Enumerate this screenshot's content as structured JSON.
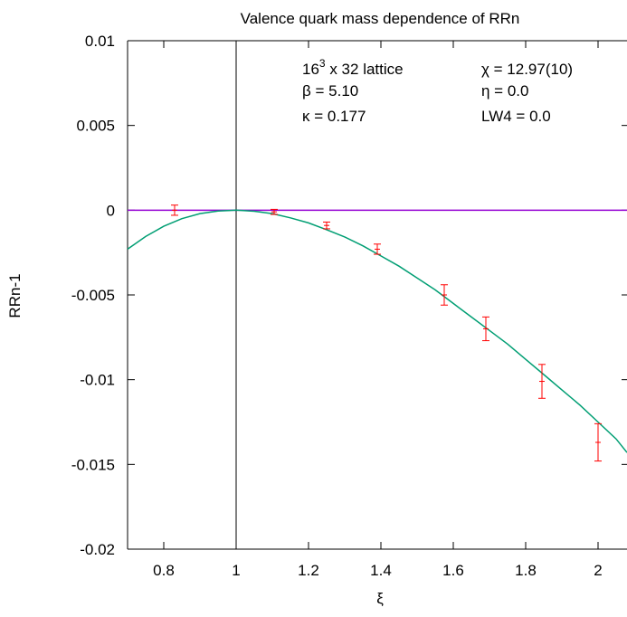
{
  "chart_data": {
    "type": "scatter",
    "title": "Valence quark mass dependence of RRn",
    "xlabel": "ξ",
    "ylabel": "RRn-1",
    "xlim": [
      0.7,
      2.08
    ],
    "ylim": [
      -0.02,
      0.01
    ],
    "xticks": [
      0.8,
      1,
      1.2,
      1.4,
      1.6,
      1.8,
      2
    ],
    "xtick_labels": [
      "0.8",
      "1",
      "1.2",
      "1.4",
      "1.6",
      "1.8",
      "2"
    ],
    "yticks": [
      0.01,
      0.005,
      0,
      -0.005,
      -0.01,
      -0.015,
      -0.02
    ],
    "ytick_labels": [
      "0.01",
      "0.005",
      "0",
      "-0.005",
      "-0.01",
      "-0.015",
      "-0.02"
    ],
    "grid": false,
    "reference_lines": {
      "horizontal_y": 0,
      "vertical_x": 1
    },
    "annotations": {
      "lattice_base": "16",
      "lattice_exp": "3",
      "lattice_rest": " x 32 lattice",
      "beta": "β = 5.10",
      "kappa": "κ = 0.177",
      "chi": "χ = 12.97(10)",
      "eta": "η = 0.0",
      "lw4": "LW4 =  0.0"
    },
    "series": [
      {
        "kind": "points_with_errors",
        "points": [
          {
            "x": 0.83,
            "y": 0.0,
            "err": 0.0003
          },
          {
            "x": 1.105,
            "y": -0.0001,
            "err": 0.00015
          },
          {
            "x": 1.25,
            "y": -0.0009,
            "err": 0.0002
          },
          {
            "x": 1.39,
            "y": -0.0023,
            "err": 0.0003
          },
          {
            "x": 1.575,
            "y": -0.005,
            "err": 0.0006
          },
          {
            "x": 1.69,
            "y": -0.007,
            "err": 0.0007
          },
          {
            "x": 1.845,
            "y": -0.0101,
            "err": 0.001
          },
          {
            "x": 2.0,
            "y": -0.0137,
            "err": 0.0011
          }
        ]
      },
      {
        "kind": "fit_curve",
        "x": [
          0.7,
          0.75,
          0.8,
          0.85,
          0.9,
          0.95,
          1.0,
          1.05,
          1.1,
          1.15,
          1.2,
          1.25,
          1.3,
          1.35,
          1.4,
          1.45,
          1.5,
          1.55,
          1.6,
          1.65,
          1.7,
          1.75,
          1.8,
          1.85,
          1.9,
          1.95,
          2.0,
          2.05,
          2.08
        ],
        "y": [
          -0.0023,
          -0.00155,
          -0.00095,
          -0.0005,
          -0.0002,
          -5e-05,
          0.0,
          -6e-05,
          -0.0002,
          -0.00045,
          -0.00075,
          -0.00115,
          -0.00158,
          -0.0021,
          -0.0027,
          -0.0033,
          -0.004,
          -0.0047,
          -0.0055,
          -0.0063,
          -0.0071,
          -0.0079,
          -0.0088,
          -0.0097,
          -0.0106,
          -0.0115,
          -0.0125,
          -0.0135,
          -0.0143
        ]
      }
    ]
  },
  "colors": {
    "points": "#ff0000",
    "fit": "#009e73",
    "zero_line": "#9400d3",
    "axes": "#000000"
  }
}
